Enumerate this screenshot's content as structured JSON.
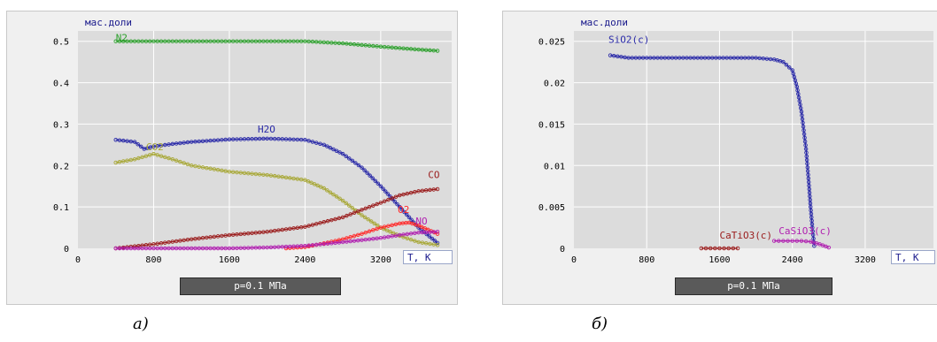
{
  "captions": [
    "а)",
    "б)"
  ],
  "pressure_label": "p=0.1 МПа",
  "colors": {
    "plot_bg": "#dcdcdc",
    "panel_bg": "#f0f0f0",
    "grid": "#ffffff",
    "axis_text": "#000000",
    "ylabel_text": "#1a1a8c",
    "N2": "#2ca02c",
    "H2O": "#2a2aa8",
    "CO2": "#a8a838",
    "CO": "#9a1c1c",
    "O2": "#ff2a2a",
    "NO": "#b020b0",
    "SiO2(c)": "#2a2aa8",
    "CaTiO3(c)": "#9a1c1c",
    "CaSiO3(c)": "#b020b0"
  },
  "chart_data": [
    {
      "type": "line",
      "ylabel": "мас.доли",
      "xlabel": "T, K",
      "xlim": [
        0,
        3950
      ],
      "ylim": [
        0,
        0.525
      ],
      "xticks": [
        0,
        800,
        1600,
        2400,
        3200
      ],
      "yticks": [
        0,
        0.1,
        0.2,
        0.3,
        0.4,
        0.5
      ],
      "ytick_labels": [
        "0",
        "0.1",
        "0.2",
        "0.3",
        "0.4",
        "0.5"
      ],
      "grid": true,
      "series": [
        {
          "name": "N2",
          "color_key": "N2",
          "label_at": [
            400,
            0.5
          ],
          "x": [
            400,
            800,
            1200,
            1600,
            2000,
            2400,
            2800,
            3200,
            3600,
            3800
          ],
          "y": [
            0.5,
            0.5,
            0.5,
            0.5,
            0.5,
            0.5,
            0.495,
            0.487,
            0.48,
            0.477
          ]
        },
        {
          "name": "H2O",
          "color_key": "H2O",
          "label_at": [
            1900,
            0.28
          ],
          "x": [
            400,
            600,
            700,
            800,
            1000,
            1200,
            1600,
            2000,
            2400,
            2600,
            2800,
            3000,
            3200,
            3400,
            3600,
            3800
          ],
          "y": [
            0.262,
            0.257,
            0.24,
            0.246,
            0.252,
            0.257,
            0.263,
            0.265,
            0.262,
            0.25,
            0.228,
            0.195,
            0.15,
            0.1,
            0.05,
            0.013
          ]
        },
        {
          "name": "CO2",
          "color_key": "CO2",
          "label_at": [
            720,
            0.237
          ],
          "x": [
            400,
            600,
            800,
            1000,
            1200,
            1600,
            2000,
            2400,
            2600,
            2800,
            3000,
            3200,
            3400,
            3600,
            3800
          ],
          "y": [
            0.207,
            0.215,
            0.228,
            0.215,
            0.2,
            0.185,
            0.177,
            0.165,
            0.145,
            0.115,
            0.08,
            0.05,
            0.03,
            0.015,
            0.008
          ]
        },
        {
          "name": "CO",
          "color_key": "CO",
          "label_at": [
            3700,
            0.17
          ],
          "x": [
            400,
            800,
            1200,
            1600,
            2000,
            2400,
            2800,
            3000,
            3200,
            3400,
            3600,
            3800
          ],
          "y": [
            0.0,
            0.01,
            0.022,
            0.032,
            0.04,
            0.052,
            0.075,
            0.093,
            0.11,
            0.128,
            0.138,
            0.143
          ]
        },
        {
          "name": "O2",
          "color_key": "O2",
          "label_at": [
            3380,
            0.085
          ],
          "x": [
            2200,
            2400,
            2600,
            2800,
            3000,
            3200,
            3400,
            3500,
            3600,
            3700,
            3800
          ],
          "y": [
            0.0,
            0.003,
            0.012,
            0.022,
            0.035,
            0.05,
            0.06,
            0.062,
            0.055,
            0.045,
            0.035
          ]
        },
        {
          "name": "NO",
          "color_key": "NO",
          "label_at": [
            3570,
            0.058
          ],
          "x": [
            400,
            1200,
            1600,
            2000,
            2400,
            2800,
            3200,
            3400,
            3600,
            3800
          ],
          "y": [
            0.0,
            0.0,
            0.0,
            0.002,
            0.006,
            0.015,
            0.025,
            0.032,
            0.038,
            0.04
          ]
        }
      ]
    },
    {
      "type": "line",
      "ylabel": "мас.доли",
      "xlabel": "T, K",
      "xlim": [
        0,
        3950
      ],
      "ylim": [
        0,
        0.02625
      ],
      "xticks": [
        0,
        800,
        1600,
        2400,
        3200
      ],
      "yticks": [
        0,
        0.005,
        0.01,
        0.015,
        0.02,
        0.025
      ],
      "ytick_labels": [
        "0",
        "0.005",
        "0.01",
        "0.015",
        "0.02",
        "0.025"
      ],
      "grid": true,
      "series": [
        {
          "name": "SiO2(c)",
          "color_key": "SiO2(c)",
          "label_at": [
            380,
            0.0248
          ],
          "x": [
            400,
            600,
            800,
            1200,
            1600,
            2000,
            2200,
            2300,
            2400,
            2450,
            2500,
            2550,
            2580,
            2600,
            2620,
            2640
          ],
          "y": [
            0.0233,
            0.023,
            0.023,
            0.023,
            0.023,
            0.023,
            0.0228,
            0.0225,
            0.0215,
            0.0195,
            0.0165,
            0.012,
            0.008,
            0.005,
            0.0025,
            0.0003
          ]
        },
        {
          "name": "CaTiO3(c)",
          "color_key": "CaTiO3(c)",
          "label_at": [
            1600,
            0.0012
          ],
          "x": [
            1400,
            1500,
            1600,
            1700,
            1800
          ],
          "y": [
            0.0,
            0.0,
            0.0,
            0.0,
            0.0
          ]
        },
        {
          "name": "CaSiO3(c)",
          "color_key": "CaSiO3(c)",
          "label_at": [
            2250,
            0.0017
          ],
          "x": [
            2200,
            2300,
            2400,
            2500,
            2600,
            2700,
            2800
          ],
          "y": [
            0.0009,
            0.0009,
            0.0009,
            0.0009,
            0.0008,
            0.0005,
            0.0001
          ]
        }
      ]
    }
  ]
}
